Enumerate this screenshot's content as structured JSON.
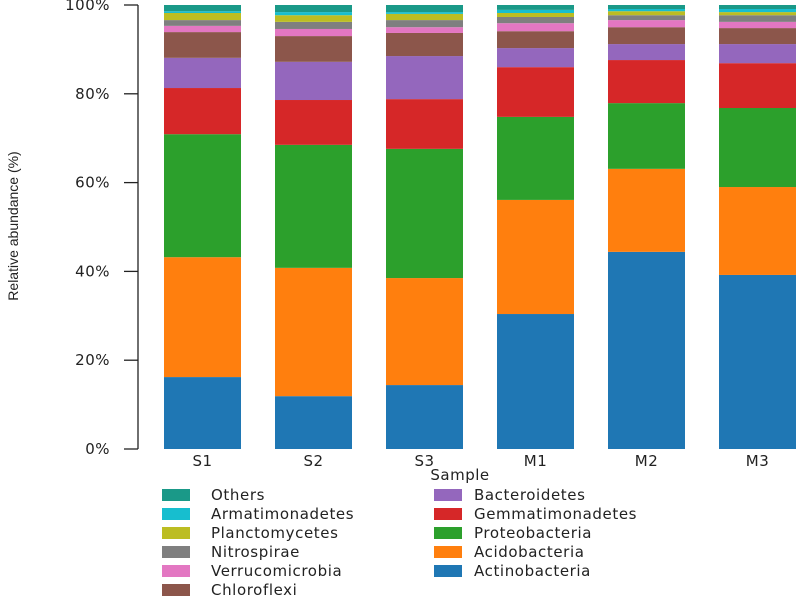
{
  "chart_data": {
    "type": "bar",
    "stacked": true,
    "title": "",
    "xlabel": "Sample",
    "ylabel": "Relative abundance (%)",
    "ylim": [
      0,
      100
    ],
    "yticks": [
      0,
      20,
      40,
      60,
      80,
      100
    ],
    "ytick_labels": [
      "0%",
      "20%",
      "40%",
      "60%",
      "80%",
      "100%"
    ],
    "grid": false,
    "legend_position": "bottom",
    "categories": [
      "S1",
      "S2",
      "S3",
      "M1",
      "M2",
      "M3"
    ],
    "series": [
      {
        "name": "Actinobacteria",
        "color": "#1f77b4",
        "values": [
          16.2,
          11.9,
          14.4,
          30.4,
          44.4,
          39.2
        ]
      },
      {
        "name": "Acidobacteria",
        "color": "#ff7f0e",
        "values": [
          27.0,
          28.9,
          24.1,
          25.7,
          18.7,
          19.8
        ]
      },
      {
        "name": "Proteobacteria",
        "color": "#2ca02c",
        "values": [
          27.7,
          27.7,
          29.1,
          18.7,
          14.8,
          17.8
        ]
      },
      {
        "name": "Gemmatimonadetes",
        "color": "#d62728",
        "values": [
          10.4,
          10.1,
          11.2,
          11.2,
          9.7,
          10.1
        ]
      },
      {
        "name": "Bacteroidetes",
        "color": "#9467bd",
        "values": [
          6.8,
          8.6,
          9.7,
          4.3,
          3.6,
          4.3
        ]
      },
      {
        "name": "Chloroflexi",
        "color": "#8c564b",
        "values": [
          5.8,
          5.8,
          5.2,
          3.8,
          3.8,
          3.6
        ]
      },
      {
        "name": "Verrucomicrobia",
        "color": "#e377c2",
        "values": [
          1.4,
          1.6,
          1.3,
          1.8,
          1.6,
          1.4
        ]
      },
      {
        "name": "Nitrospirae",
        "color": "#7f7f7f",
        "values": [
          1.3,
          1.6,
          1.6,
          1.4,
          1.1,
          1.5
        ]
      },
      {
        "name": "Planctomycetes",
        "color": "#bcbd22",
        "values": [
          1.6,
          1.5,
          1.4,
          0.9,
          0.9,
          0.7
        ]
      },
      {
        "name": "Armatimonadetes",
        "color": "#17becf",
        "values": [
          0.4,
          0.7,
          0.4,
          0.7,
          0.5,
          0.7
        ]
      },
      {
        "name": "Others",
        "color": "#1a9988",
        "values": [
          1.4,
          1.6,
          1.6,
          1.1,
          0.9,
          0.9
        ]
      }
    ],
    "legend_order": [
      "Others",
      "Armatimonadetes",
      "Planctomycetes",
      "Nitrospirae",
      "Verrucomicrobia",
      "Chloroflexi",
      "Bacteroidetes",
      "Gemmatimonadetes",
      "Proteobacteria",
      "Acidobacteria",
      "Actinobacteria"
    ]
  }
}
